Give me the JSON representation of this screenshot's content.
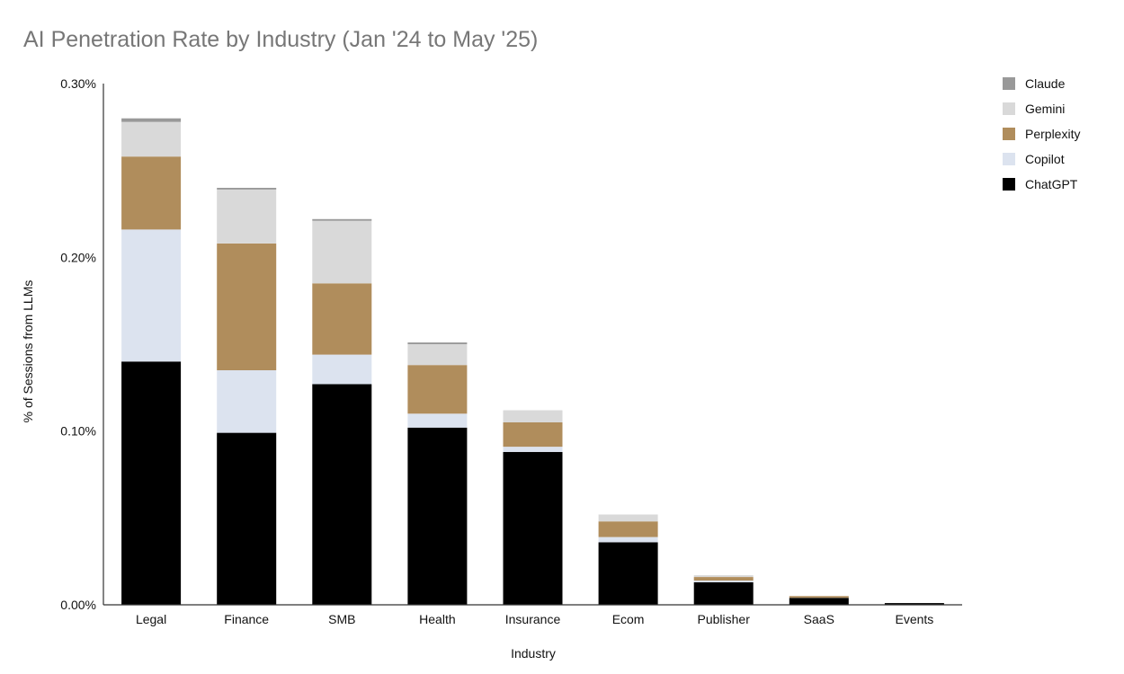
{
  "chart_data": {
    "type": "bar",
    "stacked": true,
    "title": "AI Penetration Rate by Industry (Jan '24 to May '25)",
    "xlabel": "Industry",
    "ylabel": "% of Sessions from LLMs",
    "ylim": [
      0,
      0.3
    ],
    "yticks": [
      {
        "value": 0.0,
        "label": "0.00%"
      },
      {
        "value": 0.1,
        "label": "0.10%"
      },
      {
        "value": 0.2,
        "label": "0.20%"
      },
      {
        "value": 0.3,
        "label": "0.30%"
      }
    ],
    "grid": false,
    "legend_position": "top-right",
    "categories": [
      "Legal",
      "Finance",
      "SMB",
      "Health",
      "Insurance",
      "Ecom",
      "Publisher",
      "SaaS",
      "Events"
    ],
    "series": [
      {
        "name": "ChatGPT",
        "color": "#000000",
        "values": [
          0.14,
          0.099,
          0.127,
          0.102,
          0.088,
          0.036,
          0.013,
          0.004,
          0.001
        ]
      },
      {
        "name": "Copilot",
        "color": "#dce3ef",
        "values": [
          0.076,
          0.036,
          0.017,
          0.008,
          0.003,
          0.003,
          0.001,
          0.0,
          0.0
        ]
      },
      {
        "name": "Perplexity",
        "color": "#b08d5c",
        "values": [
          0.042,
          0.073,
          0.041,
          0.028,
          0.014,
          0.009,
          0.002,
          0.001,
          0.0
        ]
      },
      {
        "name": "Gemini",
        "color": "#d9d9d9",
        "values": [
          0.02,
          0.031,
          0.036,
          0.012,
          0.007,
          0.004,
          0.001,
          0.0,
          0.0
        ]
      },
      {
        "name": "Claude",
        "color": "#999999",
        "values": [
          0.002,
          0.001,
          0.001,
          0.001,
          0.0,
          0.0,
          0.0,
          0.0,
          0.0
        ]
      }
    ],
    "legend_order": [
      "Claude",
      "Gemini",
      "Perplexity",
      "Copilot",
      "ChatGPT"
    ]
  }
}
